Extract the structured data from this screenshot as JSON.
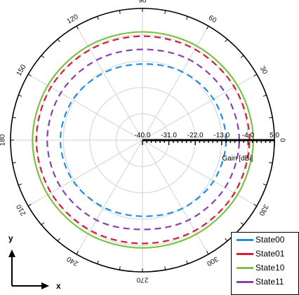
{
  "chart_data": {
    "type": "polar",
    "angle_unit": "deg",
    "angle_labels": [
      "0",
      "30",
      "60",
      "90",
      "120",
      "150",
      "180",
      "210",
      "240",
      "270",
      "300",
      "330"
    ],
    "radial_tick_labels": [
      "-40.0",
      "-31.0",
      "-22.0",
      "-13.0",
      "-4.0",
      "5.0"
    ],
    "radial_range": [
      -40.0,
      5.0
    ],
    "radial_axis_title": "Gain [dBi]",
    "grid": true,
    "legend_position": "bottom-right",
    "series": [
      {
        "name": "State00",
        "color": "#1f8fe6",
        "dash": "dashed",
        "theta": [
          0,
          30,
          60,
          90,
          120,
          150,
          180,
          210,
          240,
          270,
          300,
          330
        ],
        "r": [
          -11.5,
          -12.0,
          -13.0,
          -14.0,
          -13.5,
          -12.5,
          -12.0,
          -12.5,
          -13.5,
          -14.0,
          -13.0,
          -12.0
        ]
      },
      {
        "name": "State01",
        "color": "#d81b3c",
        "dash": "dashed",
        "theta": [
          0,
          30,
          60,
          90,
          120,
          150,
          180,
          210,
          240,
          270,
          300,
          330
        ],
        "r": [
          -3.5,
          -3.8,
          -4.2,
          -4.5,
          -4.3,
          -3.9,
          -3.8,
          -4.0,
          -4.4,
          -4.7,
          -4.3,
          -3.8
        ]
      },
      {
        "name": "State10",
        "color": "#7cc242",
        "dash": "solid",
        "theta": [
          0,
          30,
          60,
          90,
          120,
          150,
          180,
          210,
          240,
          270,
          300,
          330
        ],
        "r": [
          -2.2,
          -2.6,
          -2.9,
          -3.0,
          -2.9,
          -2.7,
          -2.5,
          -2.7,
          -3.0,
          -3.2,
          -3.0,
          -2.6
        ]
      },
      {
        "name": "State11",
        "color": "#8a3fb5",
        "dash": "dashed",
        "theta": [
          0,
          30,
          60,
          90,
          120,
          150,
          180,
          210,
          240,
          270,
          300,
          330
        ],
        "r": [
          -7.0,
          -7.5,
          -8.2,
          -9.0,
          -8.5,
          -7.8,
          -7.5,
          -7.8,
          -8.5,
          -9.5,
          -8.5,
          -7.5
        ]
      }
    ]
  },
  "coordinate_axes": {
    "x_label": "x",
    "y_label": "y"
  }
}
